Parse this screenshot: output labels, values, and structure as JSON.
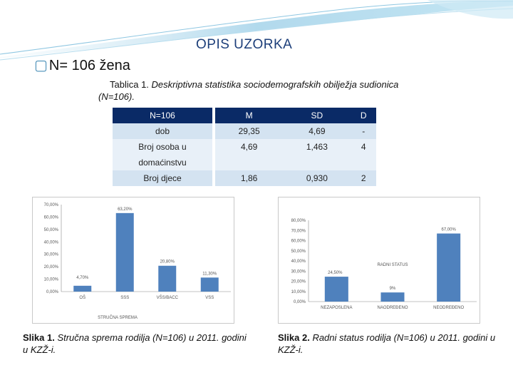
{
  "colors": {
    "accent": "#1d3f7a",
    "table_header": "#0a2a66",
    "bar": "#4f81bd"
  },
  "title": "OPIS UZORKA",
  "bullet": {
    "icon": "square-bullet-icon",
    "text": "N= 106 žena"
  },
  "table_caption": {
    "bold": "Tablica 1.",
    "italic": "Deskriptivna statistika sociodemografskih obilježja sudionica (N=106)."
  },
  "table": {
    "headers": [
      "N=106",
      "M",
      "SD",
      "D"
    ],
    "rows": [
      [
        "dob",
        "29,35",
        "4,69",
        "-"
      ],
      [
        "Broj osoba u domaćinstvu",
        "4,69",
        "1,463",
        "4"
      ],
      [
        "Broj djece",
        "1,86",
        "0,930",
        "2"
      ]
    ]
  },
  "chart_data": [
    {
      "type": "bar",
      "title": "",
      "xlabel": "STRUČNA SPREMA",
      "ylabel": "",
      "categories": [
        "OŠ",
        "SSS",
        "VŠS/BACC",
        "VSS"
      ],
      "values": [
        4.7,
        63.2,
        20.8,
        11.3
      ],
      "data_labels": [
        "4,70%",
        "63,20%",
        "20,80%",
        "11,30%"
      ],
      "ylim": [
        0,
        70
      ],
      "yticks": [
        "0,00%",
        "10,00%",
        "20,00%",
        "30,00%",
        "40,00%",
        "50,00%",
        "60,00%",
        "70,00%"
      ],
      "grid": false
    },
    {
      "type": "bar",
      "title": "",
      "xlabel": "RADNI STATUS",
      "ylabel": "",
      "categories": [
        "NEZAPOSLENA",
        "NAODREĐENO",
        "NEODREĐENO"
      ],
      "values": [
        24.5,
        9,
        67
      ],
      "data_labels": [
        "24,50%",
        "9%",
        "67,00%"
      ],
      "ylim": [
        0,
        80
      ],
      "yticks": [
        "0,00%",
        "10,00%",
        "20,00%",
        "30,00%",
        "40,00%",
        "50,00%",
        "60,00%",
        "70,00%",
        "80,00%"
      ],
      "grid": false
    }
  ],
  "figure_captions": [
    {
      "bold": "Slika 1.",
      "italic": "Stručna sprema rodilja (N=106) u 2011. godini u KZŽ-i."
    },
    {
      "bold": "Slika 2.",
      "italic": "Radni status rodilja (N=106) u 2011. godini u KZŽ-i."
    }
  ]
}
